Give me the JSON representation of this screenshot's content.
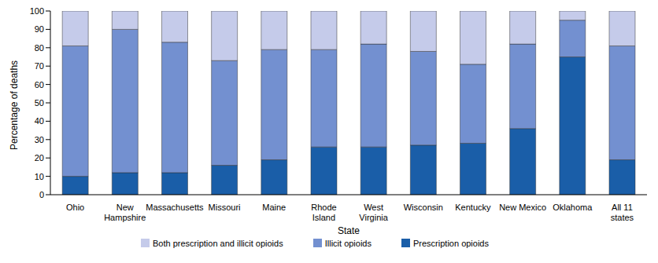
{
  "chart_data": {
    "type": "bar",
    "stacked": true,
    "legend": "bottom",
    "x_label": "State",
    "y_label": "Percentage of deaths",
    "categories": [
      "Ohio",
      "New Hampshire",
      "Massachusetts",
      "Missouri",
      "Maine",
      "Rhode Island",
      "West Virginia",
      "Wisconsin",
      "Kentucky",
      "New Mexico",
      "Oklahoma",
      "All 11 states"
    ],
    "ylim": [
      0,
      100
    ],
    "yticks": [
      0,
      10,
      20,
      30,
      40,
      50,
      60,
      70,
      80,
      90,
      100
    ],
    "grid": false,
    "series": [
      {
        "name": "Prescription opioids",
        "color": "#1a5ea8",
        "values": [
          10,
          12,
          12,
          16,
          19,
          26,
          26,
          27,
          28,
          36,
          75,
          19
        ]
      },
      {
        "name": "Illicit opioids",
        "color": "#7390d0",
        "values": [
          71,
          78,
          71,
          57,
          60,
          53,
          56,
          51,
          43,
          46,
          20,
          62
        ]
      },
      {
        "name": "Both prescription and illicit opioids",
        "color": "#c5cbea",
        "values": [
          19,
          10,
          17,
          27,
          21,
          21,
          18,
          22,
          29,
          18,
          5,
          19
        ]
      }
    ]
  }
}
